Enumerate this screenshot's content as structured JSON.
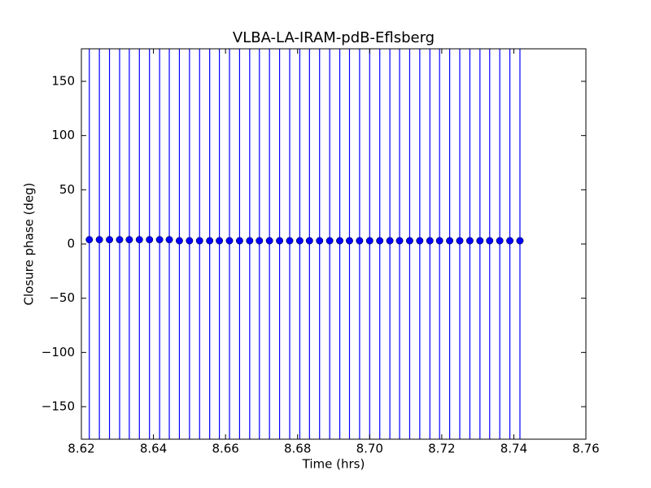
{
  "chart_data": {
    "type": "errorbar",
    "title": "VLBA-LA-IRAM-pdB-Eflsberg",
    "xlabel": "Time (hrs)",
    "ylabel": "Closure phase (deg)",
    "x": [
      8.6222,
      8.625,
      8.6278,
      8.6306,
      8.6333,
      8.6361,
      8.6389,
      8.6417,
      8.6444,
      8.6472,
      8.65,
      8.6528,
      8.6556,
      8.6583,
      8.6611,
      8.6639,
      8.6667,
      8.6694,
      8.6722,
      8.675,
      8.6778,
      8.6806,
      8.6833,
      8.6861,
      8.6889,
      8.6917,
      8.6944,
      8.6972,
      8.7,
      8.7028,
      8.7056,
      8.7083,
      8.7111,
      8.7139,
      8.7167,
      8.7194,
      8.7222,
      8.725,
      8.7278,
      8.7306,
      8.7333,
      8.7361,
      8.7389,
      8.7417
    ],
    "series": [
      {
        "color": "#0000ff",
        "values": [
          4,
          4,
          4,
          4,
          4,
          4,
          4,
          4,
          4,
          3,
          3,
          3,
          3,
          3,
          3,
          3,
          3,
          3,
          3,
          3,
          3,
          3,
          3,
          3,
          3,
          3,
          3,
          3,
          3,
          3,
          3,
          3,
          3,
          3,
          3,
          3,
          3,
          3,
          3,
          3,
          3,
          3,
          3,
          3
        ],
        "errors": [
          200,
          200,
          200,
          200,
          200,
          200,
          200,
          200,
          200,
          200,
          200,
          200,
          200,
          200,
          200,
          200,
          200,
          200,
          200,
          200,
          200,
          200,
          200,
          200,
          200,
          200,
          200,
          200,
          200,
          200,
          200,
          200,
          200,
          200,
          200,
          200,
          200,
          200,
          200,
          200,
          200,
          200,
          200,
          200
        ]
      }
    ],
    "xlim": [
      8.62,
      8.76
    ],
    "xticks": [
      8.62,
      8.64,
      8.66,
      8.68,
      {
        "value": 8.7,
        "label": "8.70"
      },
      8.72,
      8.74,
      8.76
    ],
    "ylim": [
      -180,
      180
    ],
    "yticks": [
      {
        "value": -150,
        "label": "−150"
      },
      {
        "value": -100,
        "label": "−100"
      },
      {
        "value": -50,
        "label": "−50"
      },
      0,
      50,
      100,
      150
    ]
  }
}
